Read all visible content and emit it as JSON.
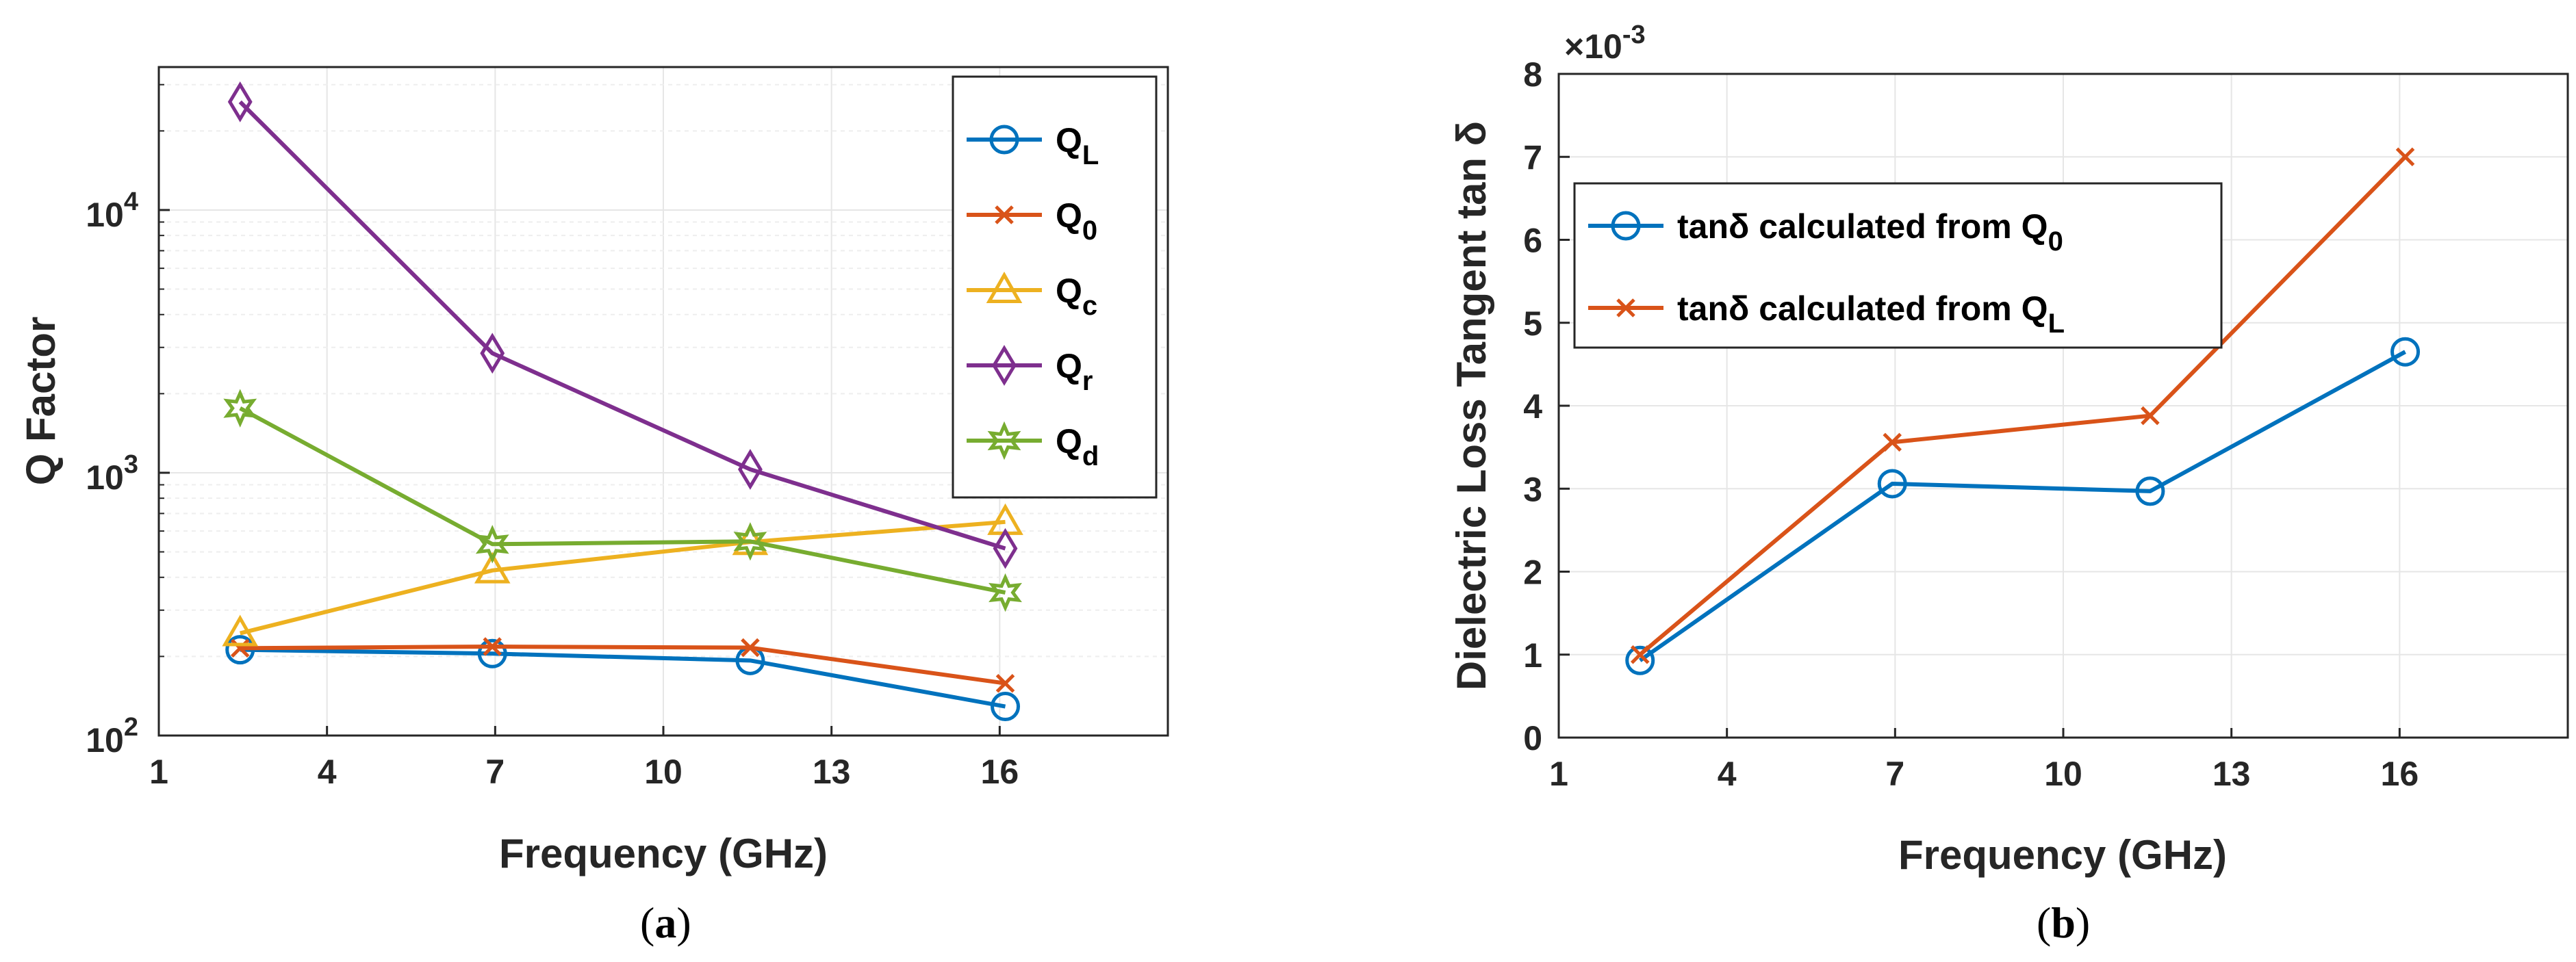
{
  "chart_data": [
    {
      "type": "line",
      "panel_label": "a",
      "xlabel": "Frequency (GHz)",
      "ylabel": "Q Factor",
      "yscale": "log",
      "xlim": [
        1,
        19
      ],
      "ylim": [
        100,
        35000
      ],
      "xticks": [
        1,
        4,
        7,
        10,
        13,
        16
      ],
      "yticks": [
        {
          "value": 100,
          "base": "10",
          "exp": "2"
        },
        {
          "value": 1000,
          "base": "10",
          "exp": "3"
        },
        {
          "value": 10000,
          "base": "10",
          "exp": "4"
        }
      ],
      "grid": true,
      "legend_position": "top-right",
      "x": [
        2.45,
        6.95,
        11.55,
        16.1
      ],
      "series": [
        {
          "name": "Q",
          "sub": "L",
          "color": "#0072BD",
          "marker": "circle",
          "values": [
            212,
            205,
            193,
            129
          ]
        },
        {
          "name": "Q",
          "sub": "0",
          "color": "#D95319",
          "marker": "x",
          "values": [
            215,
            218,
            216,
            158
          ]
        },
        {
          "name": "Q",
          "sub": "c",
          "color": "#EDB120",
          "marker": "triangle",
          "values": [
            245,
            425,
            545,
            650
          ]
        },
        {
          "name": "Q",
          "sub": "r",
          "color": "#7E2F8E",
          "marker": "diamond",
          "values": [
            25800,
            2850,
            1030,
            515
          ]
        },
        {
          "name": "Q",
          "sub": "d",
          "color": "#77AC30",
          "marker": "hexagram",
          "values": [
            1760,
            535,
            548,
            350
          ]
        }
      ]
    },
    {
      "type": "line",
      "panel_label": "b",
      "xlabel": "Frequency (GHz)",
      "ylabel": "Dielectric Loss Tangent tan δ",
      "yscale": "linear",
      "exponent_label": "×10",
      "exponent": "-3",
      "xlim": [
        1,
        19
      ],
      "ylim": [
        0,
        8
      ],
      "xticks": [
        1,
        4,
        7,
        10,
        13,
        16
      ],
      "yticks": [
        0,
        1,
        2,
        3,
        4,
        5,
        6,
        7,
        8
      ],
      "grid": true,
      "legend_position": "top-left",
      "x": [
        2.45,
        6.95,
        11.55,
        16.1
      ],
      "series": [
        {
          "name": "tanδ calculated from Q",
          "sub": "0",
          "color": "#0072BD",
          "marker": "circle",
          "values": [
            0.93,
            3.06,
            2.97,
            4.65
          ]
        },
        {
          "name": "tanδ calculated from Q",
          "sub": "L",
          "color": "#D95319",
          "marker": "x",
          "values": [
            1.0,
            3.56,
            3.88,
            7.0
          ]
        }
      ]
    }
  ]
}
